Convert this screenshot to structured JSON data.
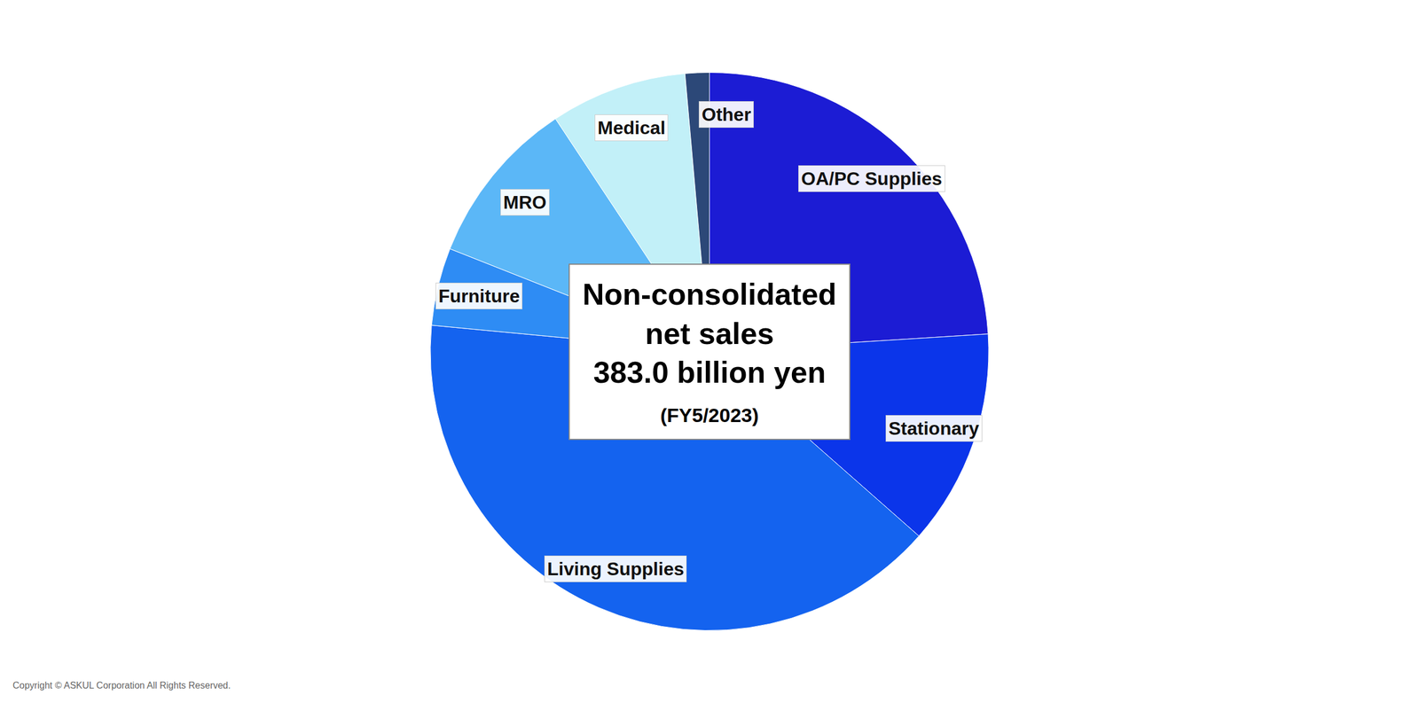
{
  "chart_data": {
    "type": "pie",
    "title": "Non-consolidated net sales",
    "total": "383.0 billion yen",
    "subtitle": "(FY5/2023)",
    "footer": "Copyright © ASKUL Corporation All Rights Reserved.",
    "categories": [
      "OA/PC Supplies",
      "Stationary",
      "Living Supplies",
      "Furniture",
      "MRO",
      "Medical",
      "Other"
    ],
    "values": [
      24,
      12.5,
      40,
      4.5,
      9.7,
      7.9,
      1.4
    ],
    "colors": [
      "#1c1cd4",
      "#0b35ea",
      "#1463ef",
      "#2e8cf4",
      "#5bb7f7",
      "#c2f0f8",
      "#2c4878"
    ],
    "legend": false
  }
}
